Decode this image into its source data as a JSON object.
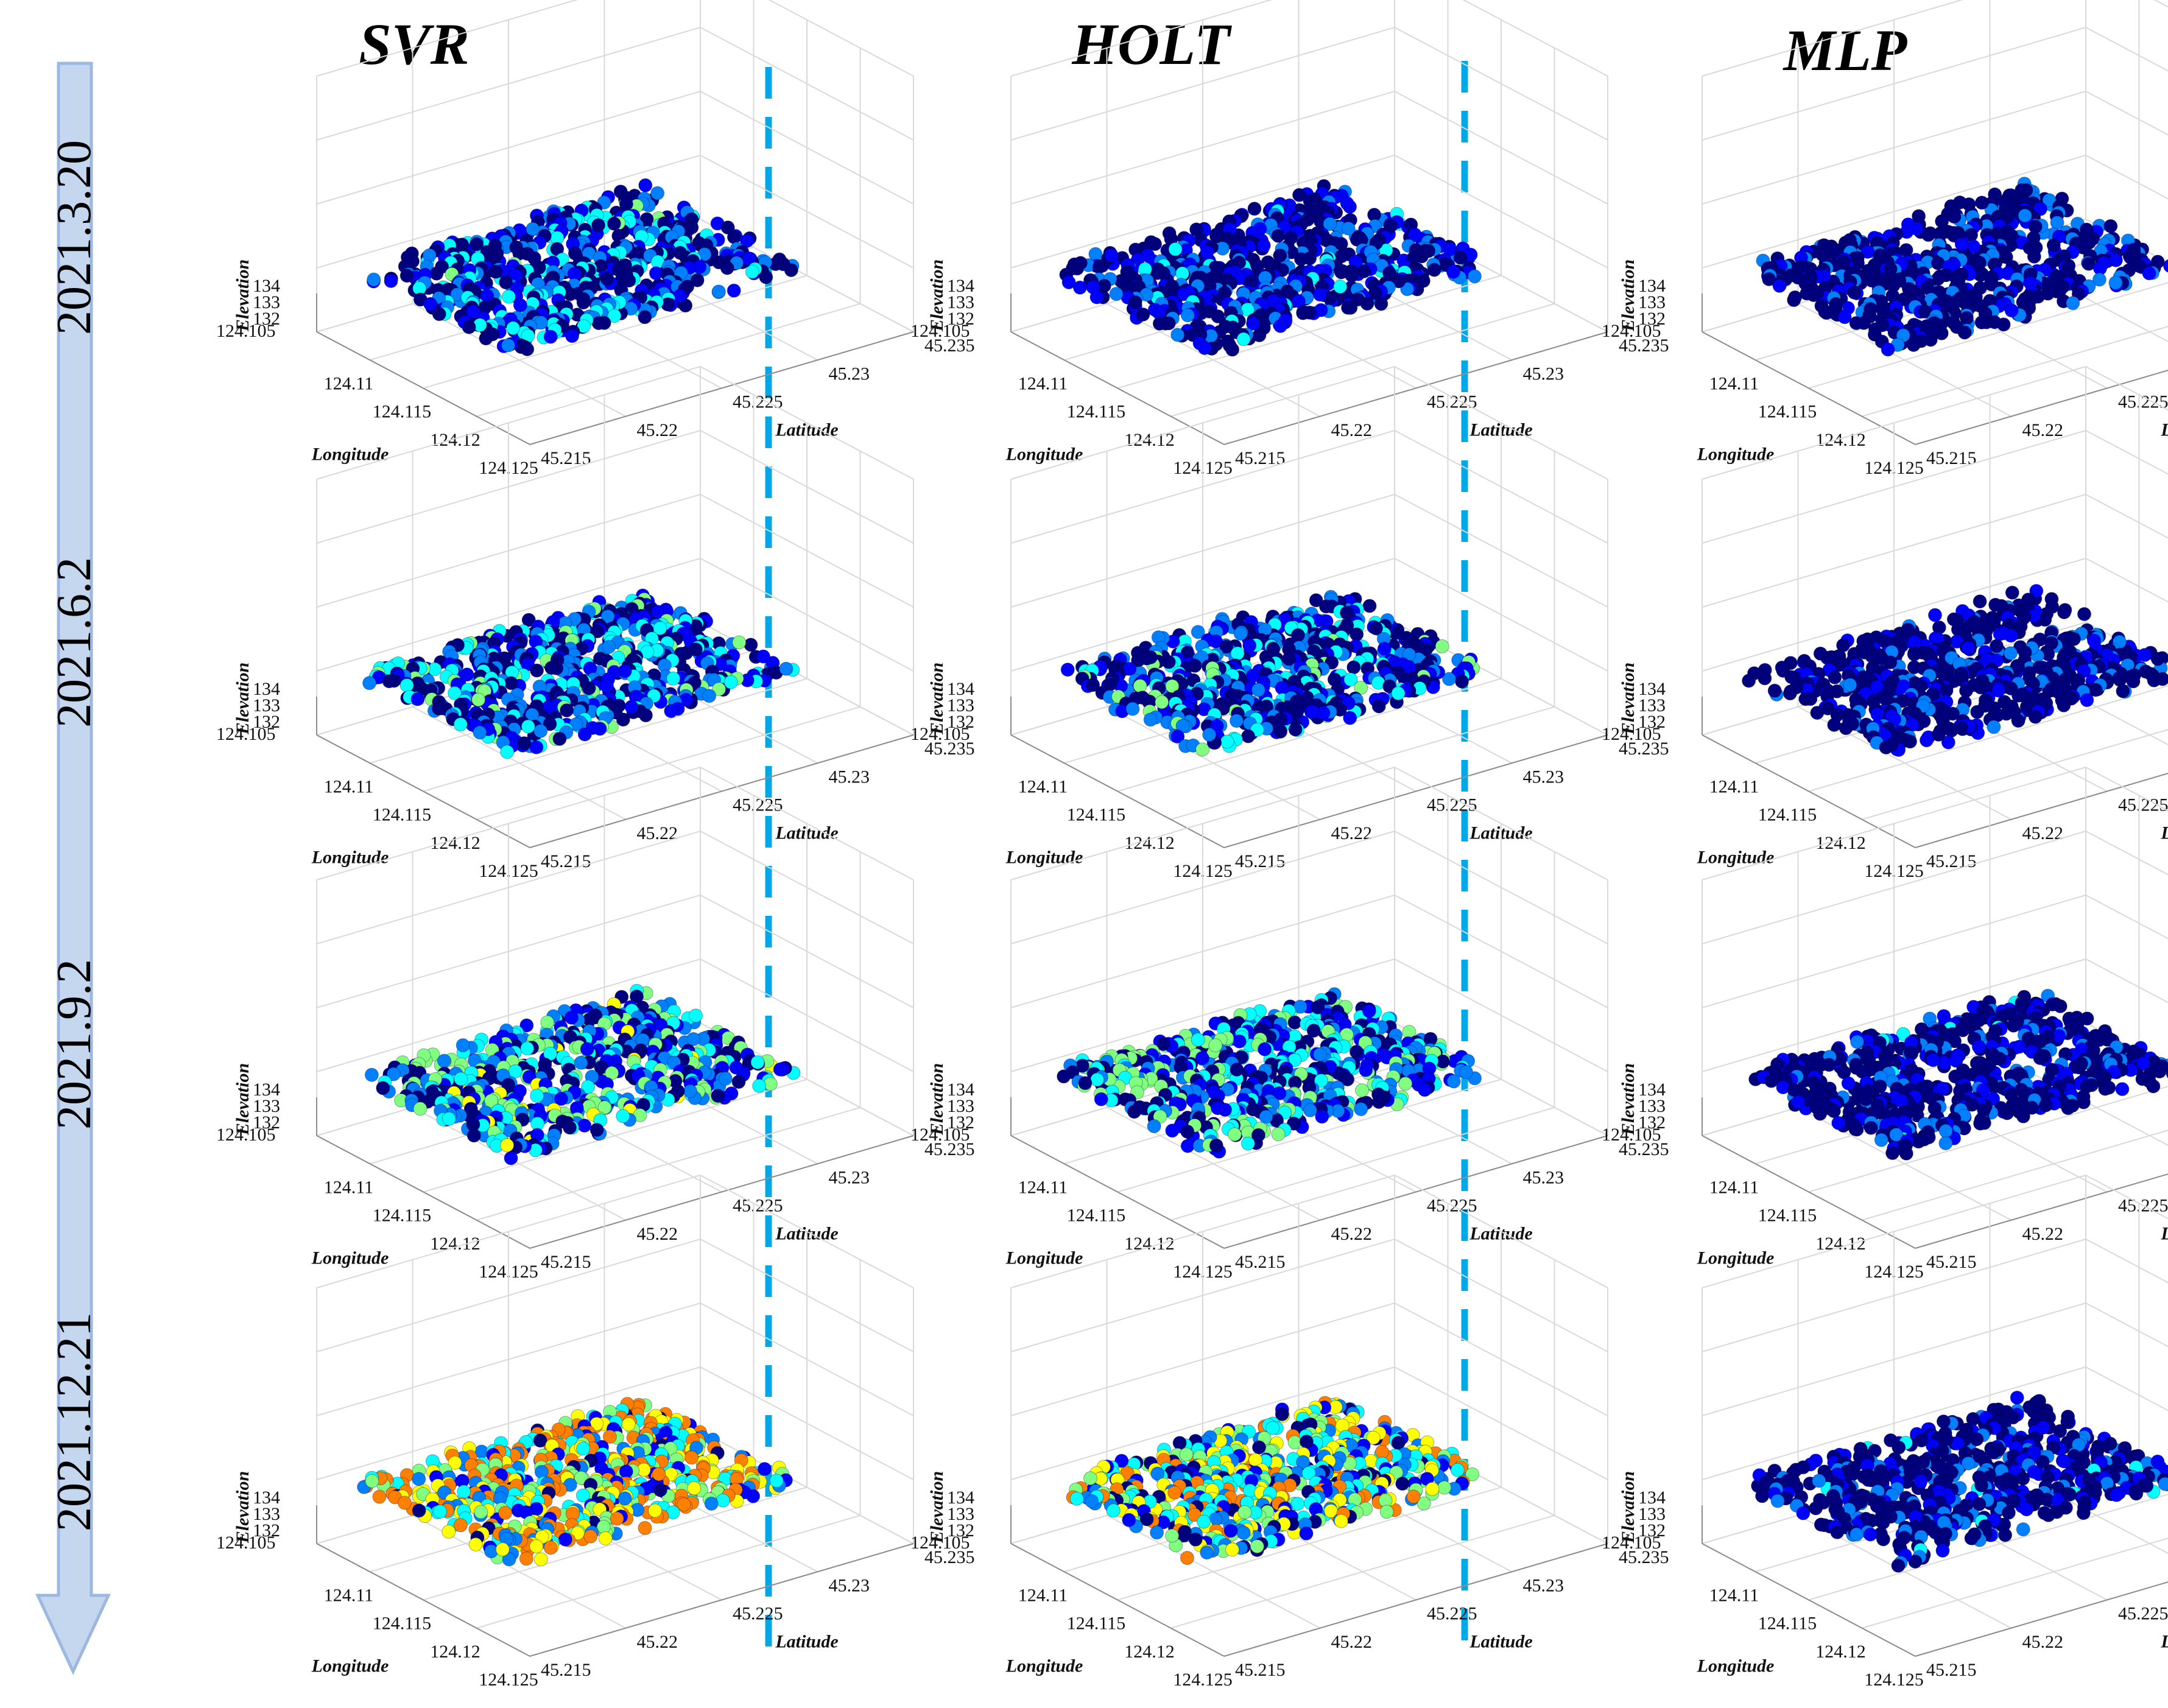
{
  "figure": {
    "columns": [
      "SVR",
      "HOLT",
      "MLP"
    ],
    "dates": [
      "2021.3.20",
      "2021.6.2",
      "2021.9.2",
      "2021.12.21"
    ],
    "colors": {
      "divider": "#00a8e8",
      "arrow_fill": "#c5d6ef",
      "arrow_stroke": "#9cb7e0",
      "grid": "#d9d9d9",
      "colormap": [
        "#00007f",
        "#0000ff",
        "#0080ff",
        "#00ffff",
        "#80ff80",
        "#ffff00",
        "#ff8000",
        "#ff0000"
      ]
    }
  },
  "chart_data": {
    "type": "scatter",
    "subtype": "3d-scatter-grid",
    "xlabel": "Longitude",
    "ylabel": "Latitude",
    "zlabel": "Elevation",
    "x_ticks": [
      "124.105",
      "124.11",
      "124.115",
      "124.12",
      "124.125"
    ],
    "y_ticks": [
      "45.215",
      "45.22",
      "45.225",
      "45.23",
      "45.235"
    ],
    "z_ticks": [
      "132",
      "133",
      "134"
    ],
    "xlim": [
      124.105,
      124.125
    ],
    "ylim": [
      45.215,
      45.235
    ],
    "zlim": [
      132,
      134
    ],
    "color_scale": "jet",
    "panels": [
      {
        "model": "SVR",
        "date": "2021.3.20",
        "intensity": 0.18,
        "seed": 11
      },
      {
        "model": "HOLT",
        "date": "2021.3.20",
        "intensity": 0.1,
        "seed": 12
      },
      {
        "model": "MLP",
        "date": "2021.3.20",
        "intensity": 0.06,
        "seed": 13
      },
      {
        "model": "SVR",
        "date": "2021.6.2",
        "intensity": 0.22,
        "seed": 21
      },
      {
        "model": "HOLT",
        "date": "2021.6.2",
        "intensity": 0.2,
        "seed": 22
      },
      {
        "model": "MLP",
        "date": "2021.6.2",
        "intensity": 0.05,
        "seed": 23
      },
      {
        "model": "SVR",
        "date": "2021.9.2",
        "intensity": 0.3,
        "seed": 31
      },
      {
        "model": "HOLT",
        "date": "2021.9.2",
        "intensity": 0.28,
        "seed": 32
      },
      {
        "model": "MLP",
        "date": "2021.9.2",
        "intensity": 0.07,
        "seed": 33
      },
      {
        "model": "SVR",
        "date": "2021.12.21",
        "intensity": 0.55,
        "seed": 41
      },
      {
        "model": "HOLT",
        "date": "2021.12.21",
        "intensity": 0.45,
        "seed": 42
      },
      {
        "model": "MLP",
        "date": "2021.12.21",
        "intensity": 0.08,
        "seed": 43
      }
    ]
  }
}
